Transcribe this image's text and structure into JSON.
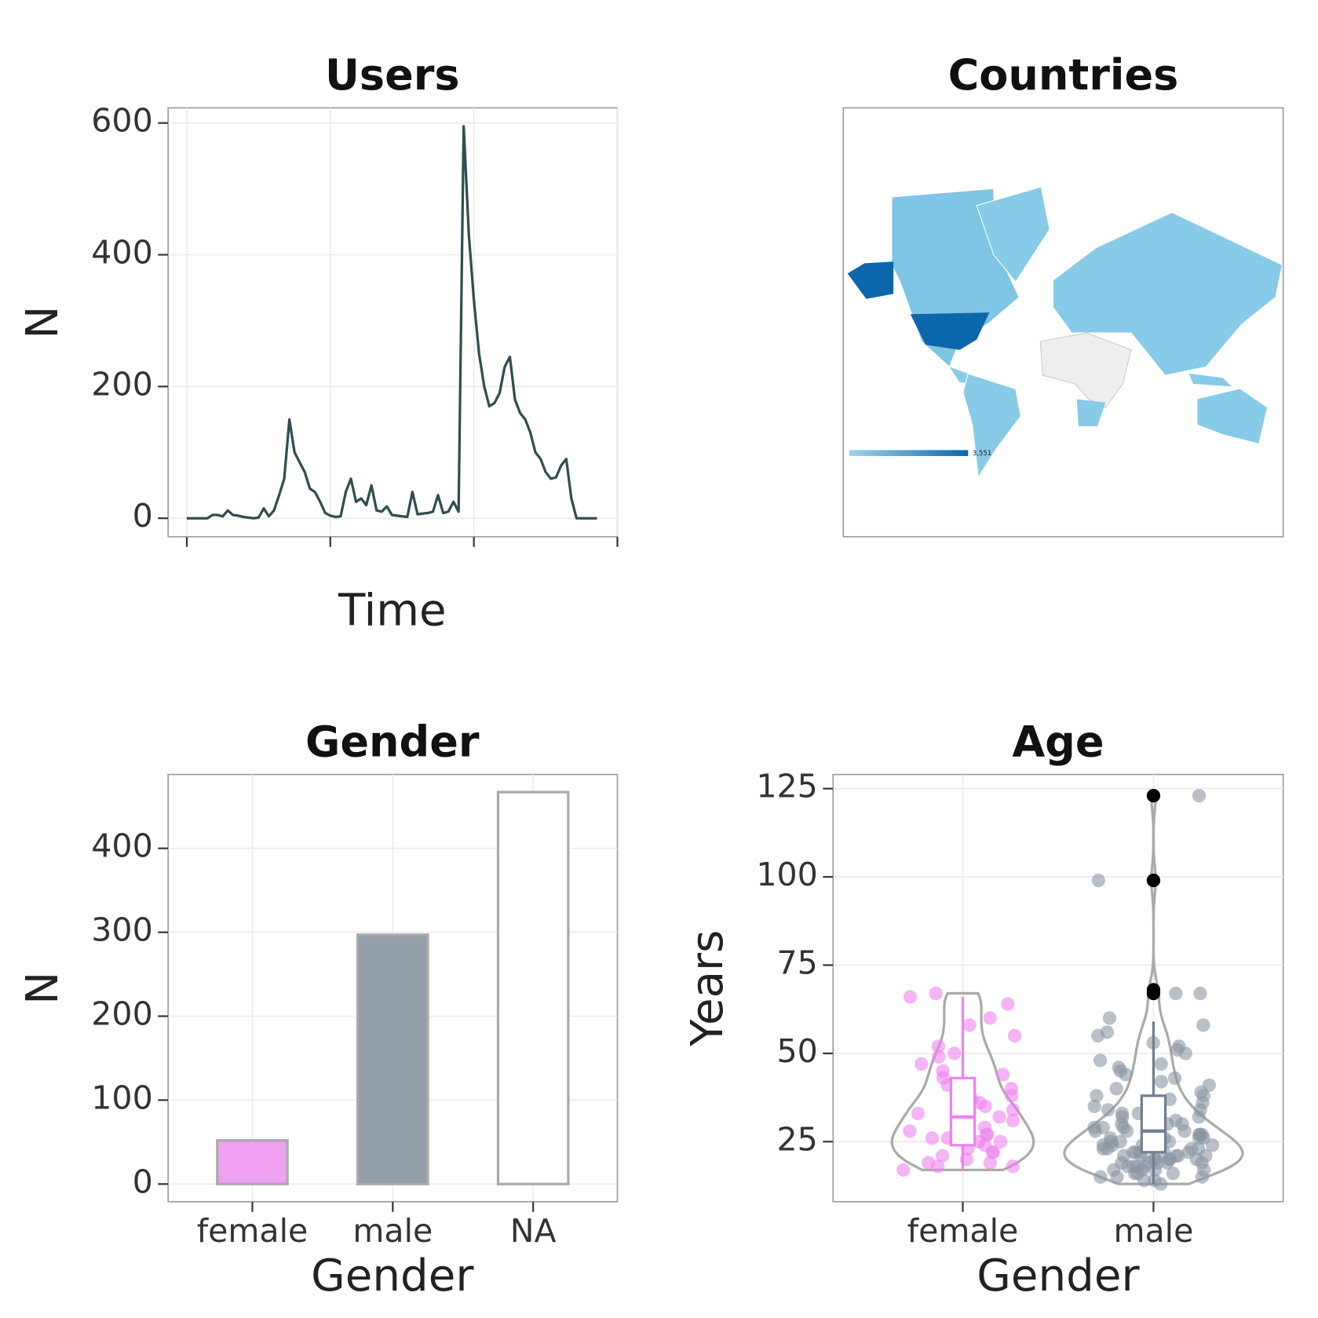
{
  "chart_data": [
    {
      "type": "line",
      "title": "Users",
      "x_label": "Time",
      "y_label": "N",
      "color": "#2f4f4f",
      "values": [
        0,
        0,
        0,
        0,
        0,
        5,
        5,
        3,
        12,
        5,
        4,
        2,
        1,
        0,
        1,
        15,
        3,
        12,
        35,
        60,
        150,
        100,
        85,
        70,
        45,
        40,
        25,
        8,
        4,
        2,
        3,
        40,
        60,
        25,
        30,
        20,
        50,
        12,
        10,
        18,
        5,
        4,
        3,
        2,
        40,
        6,
        7,
        8,
        10,
        35,
        8,
        10,
        25,
        10,
        595,
        430,
        330,
        250,
        200,
        170,
        175,
        190,
        230,
        245,
        180,
        160,
        150,
        130,
        100,
        90,
        70,
        60,
        62,
        80,
        90,
        30,
        0,
        0,
        0,
        0,
        0
      ],
      "ylim": [
        -28,
        623
      ],
      "yticks": [
        0,
        200,
        400,
        600
      ],
      "grid": true
    },
    {
      "type": "map",
      "title": "Countries",
      "scale_max": {
        "value": 3551,
        "label": "3,551"
      }
    },
    {
      "type": "bar",
      "title": "Gender",
      "x_label": "Gender",
      "y_label": "N",
      "categories": [
        "female",
        "male",
        "NA"
      ],
      "values": [
        52,
        297,
        467
      ],
      "colors": [
        "#f0a0f0",
        "#939ea8",
        "#ffffff"
      ],
      "ylim": [
        -21,
        488
      ],
      "yticks": [
        0,
        100,
        200,
        300,
        400
      ],
      "grid": true
    },
    {
      "type": "violin",
      "title": "Age",
      "x_label": "Gender",
      "y_label": "Years",
      "categories": [
        "female",
        "male"
      ],
      "groups": [
        {
          "color": "#ee82ee",
          "box_color": "#ee82ee",
          "points": [
            17,
            18,
            18,
            19,
            19,
            20,
            21,
            22,
            22,
            23,
            24,
            25,
            25,
            26,
            26,
            27,
            27,
            28,
            29,
            30,
            31,
            32,
            33,
            33,
            34,
            35,
            36,
            37,
            38,
            40,
            41,
            43,
            44,
            45,
            47,
            49,
            50,
            52,
            55,
            58,
            60,
            64,
            66,
            67
          ],
          "box": {
            "lower": 17,
            "q1": 24,
            "median": 32,
            "q3": 43,
            "upper": 66
          }
        },
        {
          "color": "#8a96a3",
          "box_color": "#708090",
          "points": [
            13,
            14,
            14,
            15,
            15,
            15,
            16,
            16,
            16,
            17,
            17,
            17,
            17,
            18,
            18,
            18,
            18,
            19,
            19,
            19,
            19,
            19,
            20,
            20,
            20,
            20,
            20,
            21,
            21,
            21,
            21,
            21,
            22,
            22,
            22,
            22,
            22,
            23,
            23,
            23,
            23,
            24,
            24,
            24,
            24,
            25,
            25,
            25,
            25,
            26,
            26,
            26,
            26,
            27,
            27,
            27,
            28,
            28,
            28,
            29,
            29,
            29,
            30,
            30,
            30,
            31,
            31,
            32,
            32,
            33,
            33,
            34,
            34,
            35,
            35,
            36,
            37,
            38,
            38,
            39,
            40,
            41,
            42,
            43,
            44,
            45,
            46,
            47,
            48,
            50,
            51,
            52,
            53,
            55,
            56,
            58,
            60,
            67,
            67,
            99,
            123
          ],
          "box": {
            "lower": 13,
            "q1": 22,
            "median": 28,
            "q3": 38,
            "upper": 59,
            "outliers": [
              67,
              68,
              99,
              123
            ]
          }
        }
      ],
      "ylim": [
        8,
        129
      ],
      "yticks": [
        25,
        50,
        75,
        100,
        125
      ],
      "grid": true
    }
  ]
}
